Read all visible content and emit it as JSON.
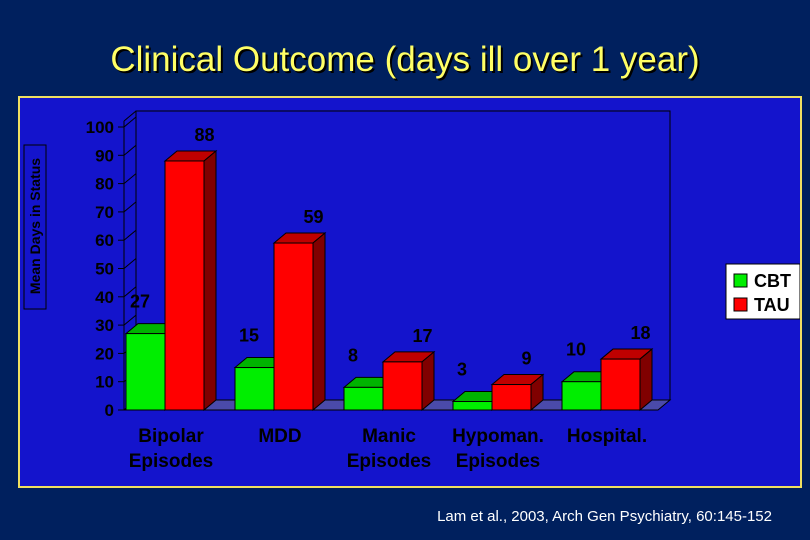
{
  "title": "Clinical Outcome (days ill over 1 year)",
  "citation": "Lam et al., 2003, Arch Gen Psychiatry,  60:145-152",
  "colors": {
    "background": "#00205e",
    "panel": "#1414cc",
    "title": "#ffff66",
    "cbt": "#00ee00",
    "tau": "#ff0000",
    "floor": "#4a4aaa"
  },
  "chart_data": {
    "type": "bar",
    "title": "Clinical Outcome (days ill over 1 year)",
    "xlabel": "",
    "ylabel": "Mean Days in Status",
    "ylim": [
      0,
      100
    ],
    "yticks": [
      0,
      10,
      20,
      30,
      40,
      50,
      60,
      70,
      80,
      90,
      100
    ],
    "grid": false,
    "legend_position": "right",
    "style": "3d",
    "categories": [
      [
        "Bipolar",
        "Episodes"
      ],
      [
        "MDD"
      ],
      [
        "Manic",
        "Episodes"
      ],
      [
        "Hypoman.",
        "Episodes"
      ],
      [
        "Hospital."
      ]
    ],
    "series": [
      {
        "name": "CBT",
        "color": "#00ee00",
        "values": [
          27,
          15,
          8,
          3,
          10
        ]
      },
      {
        "name": "TAU",
        "color": "#ff0000",
        "values": [
          88,
          59,
          17,
          9,
          18
        ]
      }
    ]
  }
}
